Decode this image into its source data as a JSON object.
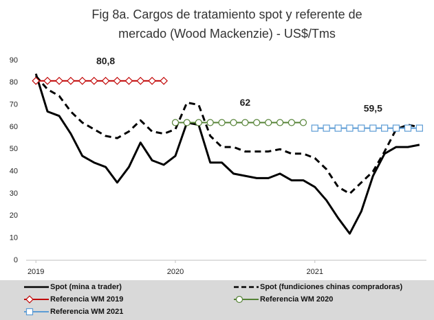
{
  "chart_data": {
    "type": "line",
    "title": [
      "Fig 8a. Cargos de tratamiento spot y referente de",
      "mercado (Wood Mackenzie) - US$/Tms"
    ],
    "x": [
      2019,
      2019.083,
      2019.167,
      2019.25,
      2019.333,
      2019.417,
      2019.5,
      2019.583,
      2019.667,
      2019.75,
      2019.833,
      2019.917,
      2020,
      2020.083,
      2020.167,
      2020.25,
      2020.333,
      2020.417,
      2020.5,
      2020.583,
      2020.667,
      2020.75,
      2020.833,
      2020.917,
      2021,
      2021.083,
      2021.167,
      2021.25,
      2021.333,
      2021.417,
      2021.5,
      2021.583,
      2021.667,
      2021.75
    ],
    "xlim": [
      2018.93,
      2021.8
    ],
    "xticks": [
      2019,
      2020,
      2021
    ],
    "ylim": [
      0,
      90
    ],
    "yticks": [
      0,
      10,
      20,
      30,
      40,
      50,
      60,
      70,
      80,
      90
    ],
    "legend": "bottom",
    "series": [
      {
        "name": "Spot (mina a trader)",
        "color": "#000000",
        "dash": "solid",
        "values": [
          84,
          67,
          65,
          57,
          47,
          44,
          42,
          35,
          42,
          53,
          45,
          43,
          47,
          62,
          61,
          44,
          44,
          39,
          38,
          37,
          37,
          39,
          36,
          36,
          33,
          27,
          19,
          12,
          22,
          38,
          48,
          51,
          51,
          52
        ]
      },
      {
        "name": "Spot (fundiciones chinas compradoras)",
        "color": "#000000",
        "dash": "dashed",
        "values": [
          83,
          77,
          74,
          67,
          62,
          59,
          56,
          55,
          58,
          63,
          58,
          57,
          59,
          71,
          70,
          56,
          51,
          51,
          49,
          49,
          49,
          50,
          48,
          48,
          46,
          41,
          33,
          30,
          35,
          40,
          49,
          59,
          61,
          60
        ]
      },
      {
        "name": "Referencia WM 2019",
        "color": "#c00000",
        "marker": "diamond",
        "label": "80,8",
        "values": [
          80.8,
          80.8,
          80.8,
          80.8,
          80.8,
          80.8,
          80.8,
          80.8,
          80.8,
          80.8,
          80.8,
          80.8,
          null,
          null,
          null,
          null,
          null,
          null,
          null,
          null,
          null,
          null,
          null,
          null,
          null,
          null,
          null,
          null,
          null,
          null,
          null,
          null,
          null,
          null
        ]
      },
      {
        "name": "Referencia WM 2020",
        "color": "#548235",
        "marker": "circle",
        "label": "62",
        "values": [
          null,
          null,
          null,
          null,
          null,
          null,
          null,
          null,
          null,
          null,
          null,
          null,
          62,
          62,
          62,
          62,
          62,
          62,
          62,
          62,
          62,
          62,
          62,
          62,
          null,
          null,
          null,
          null,
          null,
          null,
          null,
          null,
          null,
          null
        ]
      },
      {
        "name": "Referencia WM 2021",
        "color": "#5b9bd5",
        "marker": "square",
        "label": "59,5",
        "values": [
          null,
          null,
          null,
          null,
          null,
          null,
          null,
          null,
          null,
          null,
          null,
          null,
          null,
          null,
          null,
          null,
          null,
          null,
          null,
          null,
          null,
          null,
          null,
          null,
          59.5,
          59.5,
          59.5,
          59.5,
          59.5,
          59.5,
          59.5,
          59.5,
          59.5,
          59.5
        ]
      }
    ]
  }
}
